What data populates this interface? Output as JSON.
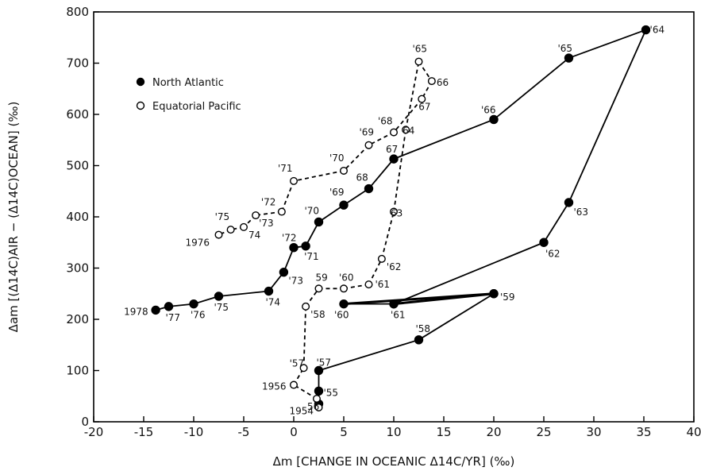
{
  "chart_data": {
    "type": "line",
    "xlabel": "Δm [CHANGE IN OCEANIC Δ14C/YR] (‰)",
    "ylabel": "Δam [(Δ14C)AIR − (Δ14C)OCEAN] (‰)",
    "xlim": [
      -20,
      40
    ],
    "ylim": [
      0,
      800
    ],
    "xticks": [
      -20,
      -15,
      -10,
      -5,
      0,
      5,
      10,
      15,
      20,
      25,
      30,
      35,
      40
    ],
    "yticks": [
      0,
      100,
      200,
      300,
      400,
      500,
      600,
      700,
      800
    ],
    "legend_position": "upper-left",
    "series": [
      {
        "name": "North Atlantic",
        "marker": "filled-circle",
        "line": "solid",
        "color": "#000000",
        "points": [
          {
            "x": 2.5,
            "y": 35,
            "label": "1954"
          },
          {
            "x": 2.5,
            "y": 60,
            "label": "'55"
          },
          {
            "x": 2.5,
            "y": 100,
            "label": "'57"
          },
          {
            "x": 12.5,
            "y": 160,
            "label": "'58"
          },
          {
            "x": 20,
            "y": 250,
            "label": "'59"
          },
          {
            "x": 10,
            "y": 230,
            "label": "'61"
          },
          {
            "x": 5,
            "y": 230,
            "label": "'60"
          },
          {
            "x": 20,
            "y": 250,
            "label": ""
          },
          {
            "x": 10,
            "y": 230,
            "label": ""
          },
          {
            "x": 25,
            "y": 350,
            "label": "'62"
          },
          {
            "x": 27.5,
            "y": 428,
            "label": "'63"
          },
          {
            "x": 35.2,
            "y": 765,
            "label": "'64"
          },
          {
            "x": 27.5,
            "y": 710,
            "label": "'65"
          },
          {
            "x": 20,
            "y": 590,
            "label": "'66"
          },
          {
            "x": 10,
            "y": 513,
            "label": "67"
          },
          {
            "x": 7.5,
            "y": 455,
            "label": "68"
          },
          {
            "x": 5,
            "y": 423,
            "label": "'69"
          },
          {
            "x": 2.5,
            "y": 390,
            "label": "'70"
          },
          {
            "x": 1.2,
            "y": 343,
            "label": "'71"
          },
          {
            "x": 0,
            "y": 340,
            "label": "'72"
          },
          {
            "x": -1,
            "y": 292,
            "label": "'73"
          },
          {
            "x": -2.5,
            "y": 255,
            "label": "'74"
          },
          {
            "x": -7.5,
            "y": 245,
            "label": "'75"
          },
          {
            "x": -10,
            "y": 230,
            "label": "'76"
          },
          {
            "x": -12.5,
            "y": 225,
            "label": "'77"
          },
          {
            "x": -13.8,
            "y": 218,
            "label": "1978"
          }
        ]
      },
      {
        "name": "Equatorial Pacific",
        "marker": "open-circle",
        "line": "dashed",
        "color": "#000000",
        "points": [
          {
            "x": 2.5,
            "y": 28,
            "label": ""
          },
          {
            "x": 2.3,
            "y": 45,
            "label": "56"
          },
          {
            "x": 0,
            "y": 72,
            "label": "1956"
          },
          {
            "x": 1,
            "y": 105,
            "label": "'57"
          },
          {
            "x": 1.2,
            "y": 225,
            "label": "'58"
          },
          {
            "x": 2.5,
            "y": 260,
            "label": "59"
          },
          {
            "x": 5,
            "y": 260,
            "label": "'60"
          },
          {
            "x": 7.5,
            "y": 268,
            "label": "'61"
          },
          {
            "x": 8.8,
            "y": 318,
            "label": "'62"
          },
          {
            "x": 10,
            "y": 410,
            "label": "63"
          },
          {
            "x": 11.2,
            "y": 570,
            "label": "64"
          },
          {
            "x": 12.5,
            "y": 703,
            "label": "'65"
          },
          {
            "x": 13.8,
            "y": 665,
            "label": "66"
          },
          {
            "x": 12.8,
            "y": 630,
            "label": "67"
          },
          {
            "x": 10,
            "y": 565,
            "label": "'68"
          },
          {
            "x": 7.5,
            "y": 540,
            "label": "'69"
          },
          {
            "x": 5,
            "y": 490,
            "label": "'70"
          },
          {
            "x": 0,
            "y": 470,
            "label": "'71"
          },
          {
            "x": -1.2,
            "y": 410,
            "label": "'72"
          },
          {
            "x": -3.8,
            "y": 403,
            "label": "'73"
          },
          {
            "x": -5,
            "y": 380,
            "label": "74"
          },
          {
            "x": -6.3,
            "y": 375,
            "label": "'75"
          },
          {
            "x": -7.5,
            "y": 365,
            "label": "1976"
          }
        ]
      }
    ]
  }
}
